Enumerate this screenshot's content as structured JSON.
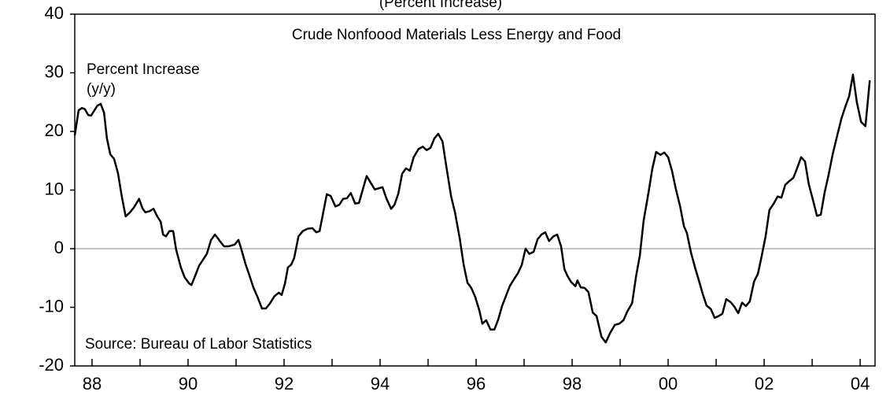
{
  "chart_data": {
    "type": "line",
    "title": "(Percent Increase)",
    "subtitle": "Crude Nonfoood Materials Less Energy and Food",
    "annotations": [
      "Percent Increase",
      "(y/y)",
      "Source: Bureau of Labor Statistics"
    ],
    "xlim": [
      1987.64,
      2004.31
    ],
    "ylim": [
      -20,
      40
    ],
    "yticks": [
      40,
      30,
      20,
      10,
      0,
      -10,
      -20
    ],
    "xticks": [
      {
        "value": 1988,
        "label": "88"
      },
      {
        "value": 1989,
        "label": null
      },
      {
        "value": 1990,
        "label": "90"
      },
      {
        "value": 1991,
        "label": null
      },
      {
        "value": 1992,
        "label": "92"
      },
      {
        "value": 1993,
        "label": null
      },
      {
        "value": 1994,
        "label": "94"
      },
      {
        "value": 1995,
        "label": null
      },
      {
        "value": 1996,
        "label": "96"
      },
      {
        "value": 1997,
        "label": null
      },
      {
        "value": 1998,
        "label": "98"
      },
      {
        "value": 1999,
        "label": null
      },
      {
        "value": 2000,
        "label": "00"
      },
      {
        "value": 2001,
        "label": null
      },
      {
        "value": 2002,
        "label": "02"
      },
      {
        "value": 2003,
        "label": null
      },
      {
        "value": 2004,
        "label": "04"
      }
    ],
    "zero_line": true,
    "x": [
      1987.64,
      1987.72,
      1987.79,
      1987.85,
      1987.92,
      1987.98,
      1988.05,
      1988.11,
      1988.18,
      1988.25,
      1988.31,
      1988.38,
      1988.46,
      1988.54,
      1988.62,
      1988.7,
      1988.79,
      1988.87,
      1988.98,
      1989.05,
      1989.11,
      1989.2,
      1989.28,
      1989.36,
      1989.43,
      1989.48,
      1989.54,
      1989.61,
      1989.69,
      1989.75,
      1989.85,
      1989.93,
      1990.02,
      1990.07,
      1990.15,
      1990.23,
      1990.31,
      1990.39,
      1990.48,
      1990.56,
      1990.61,
      1990.67,
      1990.75,
      1990.84,
      1990.97,
      1991.05,
      1991.11,
      1991.2,
      1991.28,
      1991.36,
      1991.44,
      1991.54,
      1991.62,
      1991.7,
      1991.8,
      1991.89,
      1991.95,
      1992.02,
      1992.08,
      1992.15,
      1992.21,
      1992.3,
      1992.39,
      1992.49,
      1992.59,
      1992.67,
      1992.74,
      1992.8,
      1992.89,
      1992.97,
      1993.07,
      1993.15,
      1993.23,
      1993.31,
      1993.39,
      1993.48,
      1993.56,
      1993.64,
      1993.72,
      1993.8,
      1993.89,
      1993.97,
      1994.05,
      1994.13,
      1994.23,
      1994.3,
      1994.38,
      1994.46,
      1994.54,
      1994.62,
      1994.7,
      1994.8,
      1994.89,
      1994.97,
      1995.05,
      1995.13,
      1995.21,
      1995.3,
      1995.38,
      1995.48,
      1995.56,
      1995.66,
      1995.74,
      1995.82,
      1995.9,
      1995.98,
      1996.07,
      1996.13,
      1996.21,
      1996.3,
      1996.38,
      1996.46,
      1996.54,
      1996.62,
      1996.7,
      1996.79,
      1996.87,
      1996.95,
      1997.03,
      1997.11,
      1997.2,
      1997.28,
      1997.36,
      1997.44,
      1997.52,
      1997.61,
      1997.69,
      1997.77,
      1997.84,
      1997.9,
      1997.98,
      1998.07,
      1998.11,
      1998.18,
      1998.26,
      1998.34,
      1998.43,
      1998.51,
      1998.61,
      1998.7,
      1998.79,
      1998.89,
      1998.98,
      1999.07,
      1999.15,
      1999.25,
      1999.33,
      1999.41,
      1999.49,
      1999.59,
      1999.67,
      1999.75,
      1999.84,
      1999.92,
      2000.0,
      2000.08,
      2000.16,
      2000.25,
      2000.33,
      2000.39,
      2000.48,
      2000.56,
      2000.64,
      2000.72,
      2000.8,
      2000.89,
      2000.97,
      2001.05,
      2001.13,
      2001.21,
      2001.3,
      2001.38,
      2001.46,
      2001.54,
      2001.62,
      2001.7,
      2001.79,
      2001.87,
      2001.95,
      2002.03,
      2002.11,
      2002.2,
      2002.28,
      2002.36,
      2002.44,
      2002.52,
      2002.61,
      2002.69,
      2002.77,
      2002.85,
      2002.93,
      2003.02,
      2003.1,
      2003.18,
      2003.26,
      2003.34,
      2003.43,
      2003.51,
      2003.61,
      2003.69,
      2003.77,
      2003.85,
      2003.93,
      2004.02,
      2004.11,
      2004.2
    ],
    "series": [
      {
        "name": "Crude Nonfoood Materials Less Energy and Food",
        "color": "#000000",
        "values": [
          19.3,
          23.6,
          24.0,
          23.8,
          22.8,
          22.7,
          23.6,
          24.4,
          24.7,
          23.2,
          18.8,
          16.1,
          15.3,
          12.9,
          8.9,
          5.5,
          6.2,
          7.0,
          8.5,
          6.9,
          6.2,
          6.4,
          6.8,
          5.5,
          4.6,
          2.4,
          2.1,
          3.0,
          3.0,
          -0.1,
          -3.2,
          -4.9,
          -5.9,
          -6.2,
          -4.6,
          -2.9,
          -1.9,
          -0.9,
          1.5,
          2.4,
          1.9,
          1.2,
          0.4,
          0.4,
          0.7,
          1.5,
          -0.1,
          -2.7,
          -4.6,
          -6.6,
          -8.1,
          -10.2,
          -10.2,
          -9.4,
          -8.1,
          -7.5,
          -7.9,
          -5.9,
          -3.2,
          -2.7,
          -1.6,
          2.1,
          3.0,
          3.4,
          3.5,
          2.8,
          3.0,
          5.5,
          9.3,
          9.0,
          7.2,
          7.5,
          8.5,
          8.6,
          9.5,
          7.7,
          7.8,
          10.1,
          12.4,
          11.3,
          10.1,
          10.3,
          10.5,
          8.6,
          6.8,
          7.5,
          9.4,
          12.8,
          13.7,
          13.3,
          15.6,
          17.0,
          17.4,
          16.8,
          17.2,
          18.8,
          19.6,
          18.3,
          14.0,
          8.9,
          6.2,
          1.7,
          -2.7,
          -5.8,
          -6.7,
          -8.2,
          -10.6,
          -12.8,
          -12.2,
          -13.8,
          -13.8,
          -12.1,
          -9.8,
          -8.1,
          -6.4,
          -5.2,
          -4.2,
          -2.8,
          0.0,
          -0.9,
          -0.5,
          1.6,
          2.4,
          2.8,
          1.3,
          2.1,
          2.4,
          0.4,
          -3.5,
          -4.6,
          -5.7,
          -6.4,
          -5.4,
          -6.6,
          -6.7,
          -7.4,
          -10.9,
          -11.5,
          -15.0,
          -16.0,
          -14.4,
          -13.0,
          -12.8,
          -12.2,
          -10.7,
          -9.3,
          -4.8,
          -1.2,
          4.8,
          9.5,
          13.6,
          16.5,
          16.0,
          16.4,
          15.6,
          13.3,
          10.2,
          7.2,
          3.8,
          2.7,
          -0.8,
          -3.2,
          -5.4,
          -7.7,
          -9.7,
          -10.3,
          -11.8,
          -11.5,
          -11.1,
          -8.6,
          -9.1,
          -9.9,
          -11.0,
          -9.2,
          -9.8,
          -9.0,
          -5.6,
          -4.3,
          -1.2,
          2.1,
          6.6,
          7.7,
          8.9,
          8.7,
          10.9,
          11.5,
          12.1,
          13.8,
          15.6,
          14.9,
          11.0,
          8.2,
          5.6,
          5.8,
          9.6,
          12.5,
          16.2,
          18.9,
          22.2,
          24.2,
          26.0,
          29.7,
          25.0,
          21.6,
          20.9,
          28.7
        ]
      }
    ]
  }
}
